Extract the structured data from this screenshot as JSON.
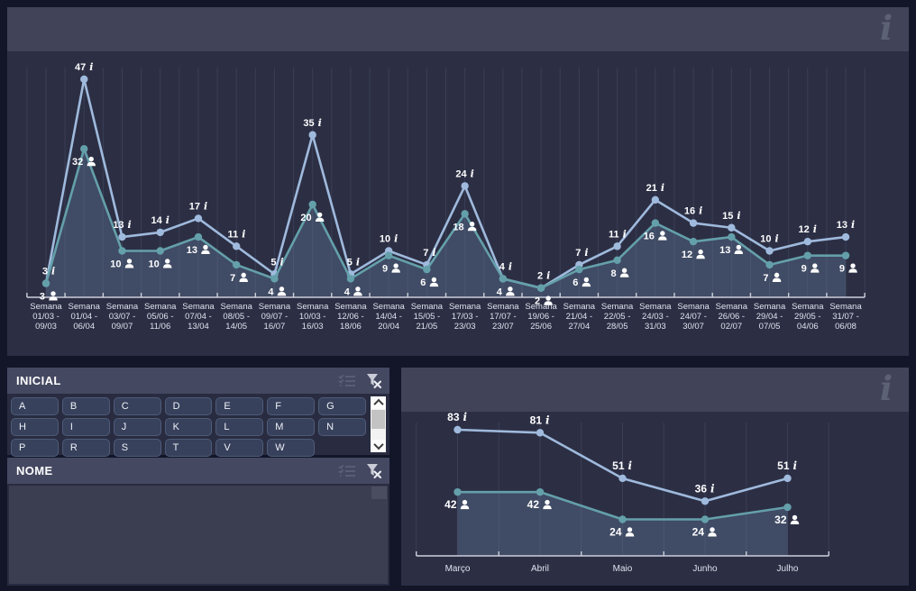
{
  "icons": {
    "info_glyph": "i"
  },
  "panels": {
    "weekly_chart": {
      "caption_title": ""
    },
    "monthly_chart": {
      "caption_title": ""
    },
    "inicial": {
      "title": "INICIAL",
      "letters": [
        "A",
        "B",
        "C",
        "D",
        "E",
        "F",
        "G",
        "H",
        "I",
        "J",
        "K",
        "L",
        "M",
        "N",
        "P",
        "R",
        "S",
        "T",
        "V",
        "W"
      ]
    },
    "nome": {
      "title": "NOME"
    }
  },
  "chart_data": [
    {
      "id": "weekly",
      "type": "line",
      "title": "",
      "xlabel": "",
      "ylabel": "",
      "legend": "none",
      "grid": "vertical",
      "ylim": [
        0,
        53
      ],
      "categories": [
        [
          "Semana",
          "01/03 -",
          "09/03"
        ],
        [
          "Semana",
          "01/04 -",
          "06/04"
        ],
        [
          "Semana",
          "03/07 -",
          "09/07"
        ],
        [
          "Semana",
          "05/06 -",
          "11/06"
        ],
        [
          "Semana",
          "07/04 -",
          "13/04"
        ],
        [
          "Semana",
          "08/05 -",
          "14/05"
        ],
        [
          "Semana",
          "09/07 -",
          "16/07"
        ],
        [
          "Semana",
          "10/03 -",
          "16/03"
        ],
        [
          "Semana",
          "12/06 -",
          "18/06"
        ],
        [
          "Semana",
          "14/04 -",
          "20/04"
        ],
        [
          "Semana",
          "15/05 -",
          "21/05"
        ],
        [
          "Semana",
          "17/03 -",
          "23/03"
        ],
        [
          "Semana",
          "17/07 -",
          "23/07"
        ],
        [
          "Semana",
          "19/06 -",
          "25/06"
        ],
        [
          "Semana",
          "21/04 -",
          "27/04"
        ],
        [
          "Semana",
          "22/05 -",
          "28/05"
        ],
        [
          "Semana",
          "24/03 -",
          "31/03"
        ],
        [
          "Semana",
          "24/07 -",
          "30/07"
        ],
        [
          "Semana",
          "26/06 -",
          "02/07"
        ],
        [
          "Semana",
          "29/04 -",
          "07/05"
        ],
        [
          "Semana",
          "29/05 -",
          "04/06"
        ],
        [
          "Semana",
          "31/07 -",
          "06/08"
        ]
      ],
      "series": [
        {
          "icon": "info",
          "color": "#9fbadd",
          "values": [
            3,
            47,
            13,
            14,
            17,
            11,
            5,
            35,
            5,
            10,
            7,
            24,
            4,
            2,
            7,
            11,
            21,
            16,
            15,
            10,
            12,
            13
          ]
        },
        {
          "icon": "person",
          "color": "#64a0aa",
          "area": true,
          "values": [
            3,
            32,
            10,
            10,
            13,
            7,
            4,
            20,
            4,
            9,
            6,
            18,
            4,
            2,
            6,
            8,
            16,
            12,
            13,
            7,
            9,
            9
          ]
        }
      ],
      "colors": {
        "grid": "#3a3e55",
        "axis": "#ccd0db",
        "area": "#6f8fb2",
        "area_opacity": 0.3
      }
    },
    {
      "id": "monthly",
      "type": "line",
      "title": "",
      "xlabel": "",
      "ylabel": "",
      "legend": "none",
      "grid": "vertical",
      "ylim": [
        0,
        95
      ],
      "categories": [
        "Março",
        "Abril",
        "Maio",
        "Junho",
        "Julho"
      ],
      "series": [
        {
          "icon": "info",
          "color": "#9fbadd",
          "values": [
            83,
            81,
            51,
            36,
            51
          ]
        },
        {
          "icon": "person",
          "color": "#64a0aa",
          "area": true,
          "values": [
            42,
            42,
            24,
            24,
            32
          ]
        }
      ],
      "colors": {
        "grid": "#3a3e55",
        "axis": "#ccd0db",
        "area": "#6f8fb2",
        "area_opacity": 0.3
      }
    }
  ]
}
